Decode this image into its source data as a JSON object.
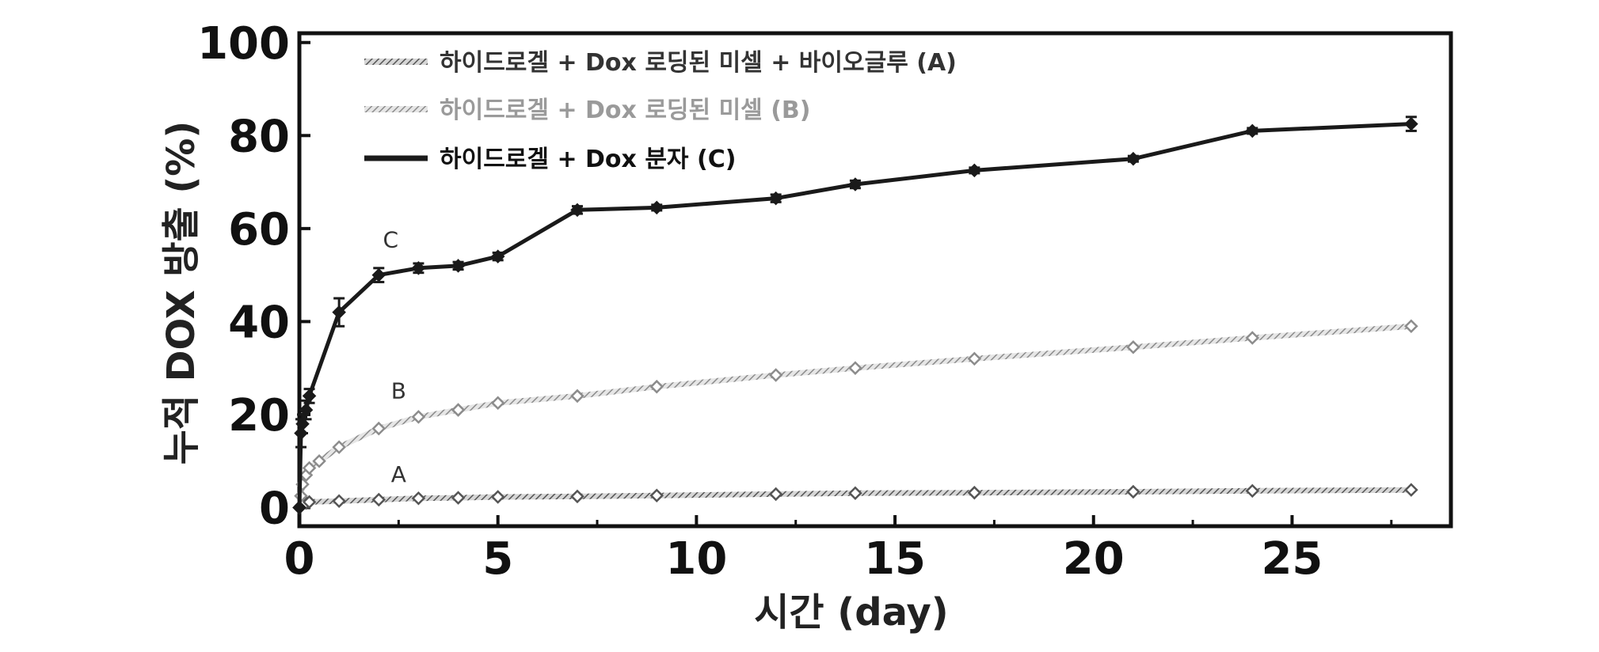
{
  "chart_data": {
    "type": "line",
    "xlabel": "시간 (day)",
    "ylabel": "누적 DOX 방출 (%)",
    "xlim": [
      0,
      29
    ],
    "ylim": [
      -4,
      102
    ],
    "xticks": [
      0,
      5,
      10,
      15,
      20,
      25
    ],
    "yticks": [
      0,
      20,
      40,
      60,
      80,
      100
    ],
    "grid": false,
    "legend_position": "top-left",
    "series": [
      {
        "name": "하이드로겔 + Dox 로딩된 미셀 + 바이오글루 (A)",
        "label": "A",
        "color": "#8a8a8a",
        "style": "hatched",
        "x": [
          0,
          0.04,
          0.08,
          0.17,
          0.25,
          1,
          2,
          3,
          4,
          5,
          7,
          9,
          12,
          14,
          17,
          21,
          24,
          28
        ],
        "y": [
          0,
          0.4,
          0.7,
          1.0,
          1.2,
          1.4,
          1.7,
          2.0,
          2.1,
          2.3,
          2.4,
          2.6,
          2.9,
          3.1,
          3.2,
          3.4,
          3.6,
          3.8
        ]
      },
      {
        "name": "하이드로겔 + Dox 로딩된 미셀 (B)",
        "label": "B",
        "color": "#a0a0a0",
        "style": "hatched",
        "x": [
          0,
          0.04,
          0.08,
          0.17,
          0.25,
          0.5,
          1,
          2,
          3,
          4,
          5,
          7,
          9,
          12,
          14,
          17,
          21,
          24,
          28
        ],
        "y": [
          0,
          2.5,
          5,
          7,
          8.5,
          10,
          13,
          17,
          19.5,
          21,
          22.5,
          24,
          26,
          28.5,
          30,
          32,
          34.5,
          36.5,
          39
        ]
      },
      {
        "name": "하이드로겔 + Dox 분자 (C)",
        "label": "C",
        "color": "#1a1a1a",
        "style": "solid",
        "x": [
          0,
          0.04,
          0.08,
          0.17,
          0.25,
          1,
          2,
          3,
          4,
          5,
          7,
          9,
          12,
          14,
          17,
          21,
          24,
          28
        ],
        "y": [
          0,
          16,
          18,
          21,
          24,
          42,
          50,
          51.5,
          52,
          54,
          64,
          64.5,
          66.5,
          69.5,
          72.5,
          75,
          81,
          82.5
        ],
        "error": [
          0,
          3,
          2,
          2,
          1.5,
          3,
          1.5,
          1,
          0.8,
          0.8,
          0.8,
          0.6,
          0.8,
          0.8,
          0.6,
          0.6,
          0.6,
          1.5
        ]
      }
    ]
  }
}
